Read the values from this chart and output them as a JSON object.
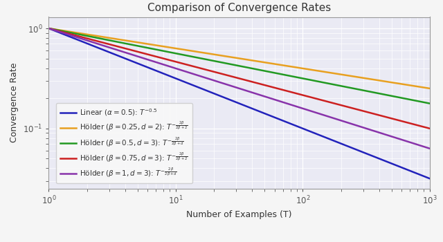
{
  "title": "Comparison of Convergence Rates",
  "xlabel": "Number of Examples (T)",
  "ylabel": "Convergence Rate",
  "xlim_log": [
    0,
    3
  ],
  "ylim": [
    0.025,
    1.3
  ],
  "background_color": "#eaeaf4",
  "fig_facecolor": "#f5f5f5",
  "lines": [
    {
      "exponent": -0.5,
      "color": "#2222bb",
      "linewidth": 1.8
    },
    {
      "exponent": -0.2,
      "color": "#e8a020",
      "linewidth": 1.8
    },
    {
      "exponent": -0.25,
      "color": "#229922",
      "linewidth": 1.8
    },
    {
      "exponent": -0.333333,
      "color": "#cc2020",
      "linewidth": 1.8
    },
    {
      "exponent": -0.4,
      "color": "#8833aa",
      "linewidth": 1.8
    }
  ],
  "title_fontsize": 11,
  "label_fontsize": 9,
  "tick_fontsize": 8.5,
  "legend_fontsize": 7.5,
  "grid_color": "#ffffff",
  "grid_linewidth": 0.9,
  "tick_color": "#555555",
  "text_color": "#333333",
  "spine_color": "#999999"
}
